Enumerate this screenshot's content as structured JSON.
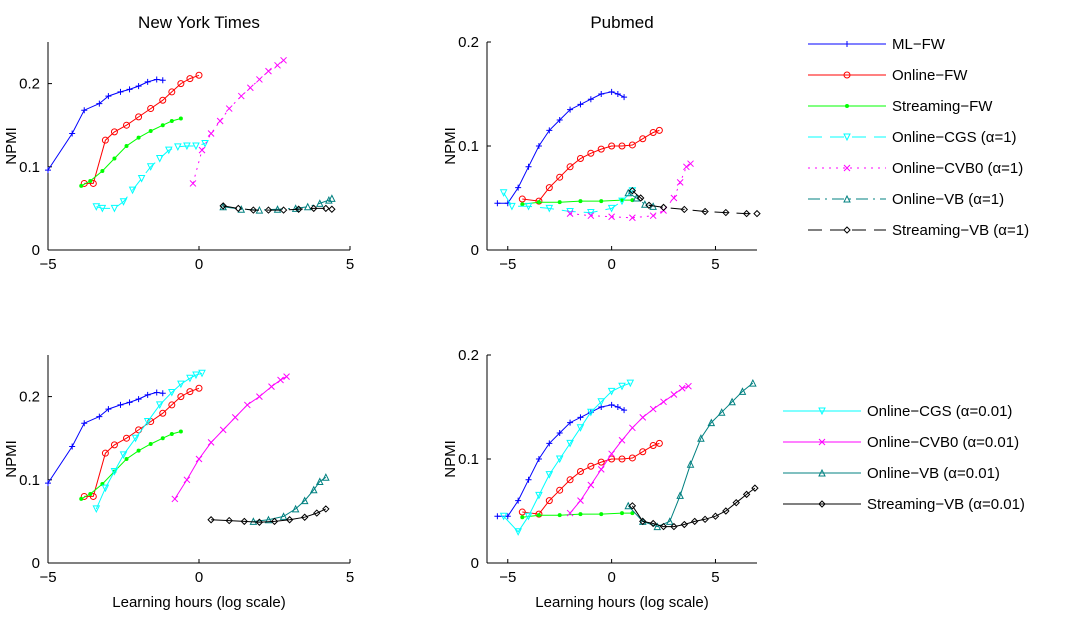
{
  "xlabel": "Learning hours (log scale)",
  "ylabel": "NPMI",
  "colors": {
    "ML-FW": "#0000ff",
    "Online-FW": "#ff0000",
    "Streaming-FW": "#00ff00",
    "Online-CGS": "#00ffff",
    "Online-CVB0": "#ff00ff",
    "Online-VB": "#008080",
    "Streaming-VB": "#000000"
  },
  "legend_top": [
    {
      "label": "ML−FW",
      "color": "#0000ff",
      "dash": "",
      "marker": "plus"
    },
    {
      "label": "Online−FW",
      "color": "#ff0000",
      "dash": "",
      "marker": "circle"
    },
    {
      "label": "Streaming−FW",
      "color": "#00ff00",
      "dash": "",
      "marker": "dot"
    },
    {
      "label": "Online−CGS (α=1)",
      "color": "#00ffff",
      "dash": "14 8",
      "marker": "tridown"
    },
    {
      "label": "Online−CVB0 (α=1)",
      "color": "#ff00ff",
      "dash": "2 5",
      "marker": "x"
    },
    {
      "label": "Online−VB (α=1)",
      "color": "#008080",
      "dash": "12 5 2 5",
      "marker": "triup"
    },
    {
      "label": "Streaming−VB (α=1)",
      "color": "#000000",
      "dash": "14 8",
      "marker": "diamond"
    }
  ],
  "legend_bottom": [
    {
      "label": "Online−CGS (α=0.01)",
      "color": "#00ffff",
      "dash": "",
      "marker": "tridown"
    },
    {
      "label": "Online−CVB0 (α=0.01)",
      "color": "#ff00ff",
      "dash": "",
      "marker": "x"
    },
    {
      "label": "Online−VB (α=0.01)",
      "color": "#008080",
      "dash": "",
      "marker": "triup"
    },
    {
      "label": "Streaming−VB (α=0.01)",
      "color": "#000000",
      "dash": "",
      "marker": "diamond"
    }
  ],
  "chart_data": [
    {
      "type": "line",
      "title": "New York Times",
      "xlabel": "",
      "ylabel": "NPMI",
      "xlim": [
        -5,
        5
      ],
      "ylim": [
        0,
        0.25
      ],
      "xticks": [
        -5,
        0,
        5
      ],
      "yticks": [
        0,
        0.1,
        0.2
      ],
      "ytick_labels": [
        "0",
        "0.1",
        "0.2"
      ],
      "series": [
        {
          "name": "ML−FW",
          "color": "#0000ff",
          "dash": "",
          "marker": "plus",
          "x": [
            -5,
            -4.2,
            -3.8,
            -3.3,
            -3.0,
            -2.6,
            -2.3,
            -2.0,
            -1.7,
            -1.4,
            -1.2
          ],
          "y": [
            0.096,
            0.14,
            0.168,
            0.176,
            0.185,
            0.19,
            0.193,
            0.197,
            0.202,
            0.205,
            0.204
          ]
        },
        {
          "name": "Online−FW",
          "color": "#ff0000",
          "dash": "",
          "marker": "circle",
          "x": [
            -3.8,
            -3.5,
            -3.1,
            -2.8,
            -2.4,
            -2.0,
            -1.6,
            -1.2,
            -0.9,
            -0.6,
            -0.3,
            0.0
          ],
          "y": [
            0.08,
            0.08,
            0.132,
            0.142,
            0.15,
            0.16,
            0.17,
            0.18,
            0.19,
            0.2,
            0.206,
            0.21
          ]
        },
        {
          "name": "Streaming−FW",
          "color": "#00ff00",
          "dash": "",
          "marker": "dot",
          "x": [
            -3.9,
            -3.6,
            -3.2,
            -2.8,
            -2.4,
            -2.0,
            -1.6,
            -1.2,
            -0.9,
            -0.6
          ],
          "y": [
            0.077,
            0.083,
            0.095,
            0.11,
            0.125,
            0.135,
            0.143,
            0.15,
            0.155,
            0.158
          ]
        },
        {
          "name": "Online−CGS (α=1)",
          "color": "#00ffff",
          "dash": "14 8",
          "marker": "tridown",
          "x": [
            -3.4,
            -3.2,
            -2.8,
            -2.5,
            -2.2,
            -1.9,
            -1.6,
            -1.3,
            -1.0,
            -0.7,
            -0.4,
            -0.1,
            0.2
          ],
          "y": [
            0.052,
            0.05,
            0.05,
            0.058,
            0.072,
            0.086,
            0.1,
            0.11,
            0.12,
            0.124,
            0.125,
            0.125,
            0.128
          ]
        },
        {
          "name": "Online−CVB0 (α=1)",
          "color": "#ff00ff",
          "dash": "2 5",
          "marker": "x",
          "x": [
            -0.2,
            0.1,
            0.4,
            0.7,
            1.0,
            1.4,
            1.7,
            2.0,
            2.3,
            2.6,
            2.8
          ],
          "y": [
            0.08,
            0.12,
            0.14,
            0.155,
            0.17,
            0.185,
            0.195,
            0.205,
            0.215,
            0.222,
            0.228
          ]
        },
        {
          "name": "Online−VB (α=1)",
          "color": "#008080",
          "dash": "12 5 2 5",
          "marker": "triup",
          "x": [
            0.8,
            1.4,
            2.0,
            2.6,
            3.2,
            3.6,
            4.0,
            4.3,
            4.4
          ],
          "y": [
            0.052,
            0.049,
            0.048,
            0.049,
            0.05,
            0.052,
            0.056,
            0.06,
            0.062
          ]
        },
        {
          "name": "Streaming−VB (α=1)",
          "color": "#000000",
          "dash": "14 8",
          "marker": "diamond",
          "x": [
            0.8,
            1.3,
            1.8,
            2.3,
            2.8,
            3.3,
            3.8,
            4.2,
            4.4
          ],
          "y": [
            0.053,
            0.05,
            0.048,
            0.048,
            0.048,
            0.049,
            0.05,
            0.05,
            0.049
          ]
        }
      ]
    },
    {
      "type": "line",
      "title": "Pubmed",
      "xlabel": "",
      "ylabel": "NPMI",
      "xlim": [
        -6,
        7
      ],
      "ylim": [
        0,
        0.2
      ],
      "xticks": [
        -5,
        0,
        5
      ],
      "yticks": [
        0,
        0.1,
        0.2
      ],
      "ytick_labels": [
        "0",
        "0.1",
        "0.2"
      ],
      "series": [
        {
          "name": "ML−FW",
          "color": "#0000ff",
          "dash": "",
          "marker": "plus",
          "x": [
            -5.5,
            -5.0,
            -4.5,
            -4.0,
            -3.5,
            -3.0,
            -2.5,
            -2.0,
            -1.5,
            -1.0,
            -0.5,
            0.0,
            0.3,
            0.6
          ],
          "y": [
            0.045,
            0.045,
            0.06,
            0.08,
            0.1,
            0.115,
            0.125,
            0.135,
            0.14,
            0.145,
            0.15,
            0.152,
            0.15,
            0.147
          ]
        },
        {
          "name": "Online−FW",
          "color": "#ff0000",
          "dash": "",
          "marker": "circle",
          "x": [
            -4.3,
            -3.5,
            -3.0,
            -2.5,
            -2.0,
            -1.5,
            -1.0,
            -0.5,
            0.0,
            0.5,
            1.0,
            1.5,
            2.0,
            2.3
          ],
          "y": [
            0.049,
            0.047,
            0.06,
            0.07,
            0.08,
            0.088,
            0.093,
            0.097,
            0.1,
            0.1,
            0.101,
            0.107,
            0.113,
            0.115
          ]
        },
        {
          "name": "Streaming−FW",
          "color": "#00ff00",
          "dash": "",
          "marker": "dot",
          "x": [
            -4.3,
            -3.5,
            -2.5,
            -1.5,
            -0.5,
            0.5,
            1.0
          ],
          "y": [
            0.044,
            0.046,
            0.046,
            0.047,
            0.047,
            0.048,
            0.048
          ]
        },
        {
          "name": "Online−CGS (α=1)",
          "color": "#00ffff",
          "dash": "14 8",
          "marker": "tridown",
          "x": [
            -5.2,
            -4.8,
            -4.0,
            -3.0,
            -2.0,
            -1.0,
            0.0,
            0.5,
            1.0
          ],
          "y": [
            0.055,
            0.042,
            0.042,
            0.04,
            0.037,
            0.036,
            0.04,
            0.047,
            0.057
          ]
        },
        {
          "name": "Online−CVB0 (α=1)",
          "color": "#ff00ff",
          "dash": "2 5",
          "marker": "x",
          "x": [
            -2.0,
            -1.0,
            0.0,
            1.0,
            2.0,
            2.5,
            3.0,
            3.3,
            3.6,
            3.8
          ],
          "y": [
            0.035,
            0.033,
            0.032,
            0.031,
            0.033,
            0.038,
            0.05,
            0.065,
            0.08,
            0.083
          ]
        },
        {
          "name": "Online−VB (α=1)",
          "color": "#008080",
          "dash": "12 5 2 5",
          "marker": "triup",
          "x": [
            0.8,
            1.2,
            1.6,
            2.0
          ],
          "y": [
            0.055,
            0.05,
            0.044,
            0.042
          ]
        },
        {
          "name": "Streaming−VB (α=1)",
          "color": "#000000",
          "dash": "14 8",
          "marker": "diamond",
          "x": [
            1.0,
            1.4,
            1.8,
            2.5,
            3.5,
            4.5,
            5.5,
            6.5,
            7.0
          ],
          "y": [
            0.057,
            0.05,
            0.043,
            0.041,
            0.039,
            0.037,
            0.036,
            0.035,
            0.035
          ]
        }
      ]
    },
    {
      "type": "line",
      "title": "",
      "xlabel": "Learning hours (log scale)",
      "ylabel": "NPMI",
      "xlim": [
        -5,
        5
      ],
      "ylim": [
        0,
        0.25
      ],
      "xticks": [
        -5,
        0,
        5
      ],
      "yticks": [
        0,
        0.1,
        0.2
      ],
      "ytick_labels": [
        "0",
        "0.1",
        "0.2"
      ],
      "series": [
        {
          "name": "ML−FW",
          "color": "#0000ff",
          "dash": "",
          "marker": "plus",
          "x": [
            -5,
            -4.2,
            -3.8,
            -3.3,
            -3.0,
            -2.6,
            -2.3,
            -2.0,
            -1.7,
            -1.4,
            -1.2
          ],
          "y": [
            0.096,
            0.14,
            0.168,
            0.176,
            0.185,
            0.19,
            0.193,
            0.197,
            0.202,
            0.205,
            0.204
          ]
        },
        {
          "name": "Online−FW",
          "color": "#ff0000",
          "dash": "",
          "marker": "circle",
          "x": [
            -3.8,
            -3.5,
            -3.1,
            -2.8,
            -2.4,
            -2.0,
            -1.6,
            -1.2,
            -0.9,
            -0.6,
            -0.3,
            0.0
          ],
          "y": [
            0.08,
            0.08,
            0.132,
            0.142,
            0.15,
            0.16,
            0.17,
            0.18,
            0.19,
            0.2,
            0.206,
            0.21
          ]
        },
        {
          "name": "Streaming−FW",
          "color": "#00ff00",
          "dash": "",
          "marker": "dot",
          "x": [
            -3.9,
            -3.6,
            -3.2,
            -2.8,
            -2.4,
            -2.0,
            -1.6,
            -1.2,
            -0.9,
            -0.6
          ],
          "y": [
            0.077,
            0.083,
            0.095,
            0.11,
            0.125,
            0.135,
            0.143,
            0.15,
            0.155,
            0.158
          ]
        },
        {
          "name": "Online−CGS (α=0.01)",
          "color": "#00ffff",
          "dash": "",
          "marker": "tridown",
          "x": [
            -3.4,
            -3.1,
            -2.8,
            -2.5,
            -2.1,
            -1.7,
            -1.3,
            -0.9,
            -0.6,
            -0.3,
            -0.1,
            0.1
          ],
          "y": [
            0.065,
            0.09,
            0.11,
            0.13,
            0.15,
            0.17,
            0.19,
            0.205,
            0.215,
            0.222,
            0.226,
            0.228
          ]
        },
        {
          "name": "Online−CVB0 (α=0.01)",
          "color": "#ff00ff",
          "dash": "",
          "marker": "x",
          "x": [
            -0.8,
            -0.4,
            0.0,
            0.4,
            0.8,
            1.2,
            1.6,
            2.0,
            2.4,
            2.7,
            2.9
          ],
          "y": [
            0.077,
            0.1,
            0.125,
            0.145,
            0.16,
            0.175,
            0.19,
            0.2,
            0.212,
            0.22,
            0.224
          ]
        },
        {
          "name": "Online−VB (α=0.01)",
          "color": "#008080",
          "dash": "",
          "marker": "triup",
          "x": [
            1.8,
            2.3,
            2.8,
            3.2,
            3.5,
            3.8,
            4.0,
            4.2
          ],
          "y": [
            0.05,
            0.052,
            0.056,
            0.065,
            0.075,
            0.088,
            0.098,
            0.103
          ]
        },
        {
          "name": "Streaming−VB (α=0.01)",
          "color": "#000000",
          "dash": "",
          "marker": "diamond",
          "x": [
            0.4,
            1.0,
            1.5,
            2.0,
            2.5,
            3.0,
            3.5,
            3.9,
            4.2
          ],
          "y": [
            0.052,
            0.051,
            0.05,
            0.049,
            0.05,
            0.052,
            0.055,
            0.06,
            0.065
          ]
        }
      ]
    },
    {
      "type": "line",
      "title": "",
      "xlabel": "Learning hours (log scale)",
      "ylabel": "NPMI",
      "xlim": [
        -6,
        7
      ],
      "ylim": [
        0,
        0.2
      ],
      "xticks": [
        -5,
        0,
        5
      ],
      "yticks": [
        0,
        0.1,
        0.2
      ],
      "ytick_labels": [
        "0",
        "0.1",
        "0.2"
      ],
      "series": [
        {
          "name": "ML−FW",
          "color": "#0000ff",
          "dash": "",
          "marker": "plus",
          "x": [
            -5.5,
            -5.0,
            -4.5,
            -4.0,
            -3.5,
            -3.0,
            -2.5,
            -2.0,
            -1.5,
            -1.0,
            -0.5,
            0.0,
            0.3,
            0.6
          ],
          "y": [
            0.045,
            0.045,
            0.06,
            0.08,
            0.1,
            0.115,
            0.125,
            0.135,
            0.14,
            0.145,
            0.15,
            0.152,
            0.15,
            0.147
          ]
        },
        {
          "name": "Online−FW",
          "color": "#ff0000",
          "dash": "",
          "marker": "circle",
          "x": [
            -4.3,
            -3.5,
            -3.0,
            -2.5,
            -2.0,
            -1.5,
            -1.0,
            -0.5,
            0.0,
            0.5,
            1.0,
            1.5,
            2.0,
            2.3
          ],
          "y": [
            0.049,
            0.047,
            0.06,
            0.07,
            0.08,
            0.088,
            0.093,
            0.097,
            0.1,
            0.1,
            0.101,
            0.107,
            0.113,
            0.115
          ]
        },
        {
          "name": "Streaming−FW",
          "color": "#00ff00",
          "dash": "",
          "marker": "dot",
          "x": [
            -4.3,
            -3.5,
            -2.5,
            -1.5,
            -0.5,
            0.5,
            1.0
          ],
          "y": [
            0.044,
            0.046,
            0.046,
            0.047,
            0.047,
            0.048,
            0.048
          ]
        },
        {
          "name": "Online−CGS (α=0.01)",
          "color": "#00ffff",
          "dash": "",
          "marker": "tridown",
          "x": [
            -5.2,
            -4.5,
            -4.0,
            -3.5,
            -3.0,
            -2.5,
            -2.0,
            -1.5,
            -1.0,
            -0.5,
            0.0,
            0.5,
            0.9
          ],
          "y": [
            0.045,
            0.03,
            0.045,
            0.065,
            0.085,
            0.1,
            0.115,
            0.13,
            0.145,
            0.155,
            0.165,
            0.17,
            0.173
          ]
        },
        {
          "name": "Online−CVB0 (α=0.01)",
          "color": "#ff00ff",
          "dash": "",
          "marker": "x",
          "x": [
            -2.0,
            -1.5,
            -1.0,
            -0.5,
            0.0,
            0.5,
            1.0,
            1.5,
            2.0,
            2.5,
            3.0,
            3.4,
            3.7
          ],
          "y": [
            0.048,
            0.06,
            0.075,
            0.09,
            0.105,
            0.118,
            0.13,
            0.14,
            0.148,
            0.155,
            0.162,
            0.168,
            0.17
          ]
        },
        {
          "name": "Online−VB (α=0.01)",
          "color": "#008080",
          "dash": "",
          "marker": "triup",
          "x": [
            0.8,
            1.5,
            2.2,
            2.8,
            3.3,
            3.8,
            4.3,
            4.8,
            5.3,
            5.8,
            6.3,
            6.8
          ],
          "y": [
            0.055,
            0.04,
            0.035,
            0.04,
            0.065,
            0.095,
            0.12,
            0.135,
            0.145,
            0.155,
            0.165,
            0.173
          ]
        },
        {
          "name": "Streaming−VB (α=0.01)",
          "color": "#000000",
          "dash": "",
          "marker": "diamond",
          "x": [
            1.0,
            1.5,
            2.0,
            2.5,
            3.0,
            3.5,
            4.0,
            4.5,
            5.0,
            5.5,
            6.0,
            6.5,
            6.9
          ],
          "y": [
            0.055,
            0.04,
            0.038,
            0.035,
            0.035,
            0.037,
            0.04,
            0.042,
            0.045,
            0.05,
            0.058,
            0.066,
            0.072
          ]
        }
      ]
    }
  ]
}
